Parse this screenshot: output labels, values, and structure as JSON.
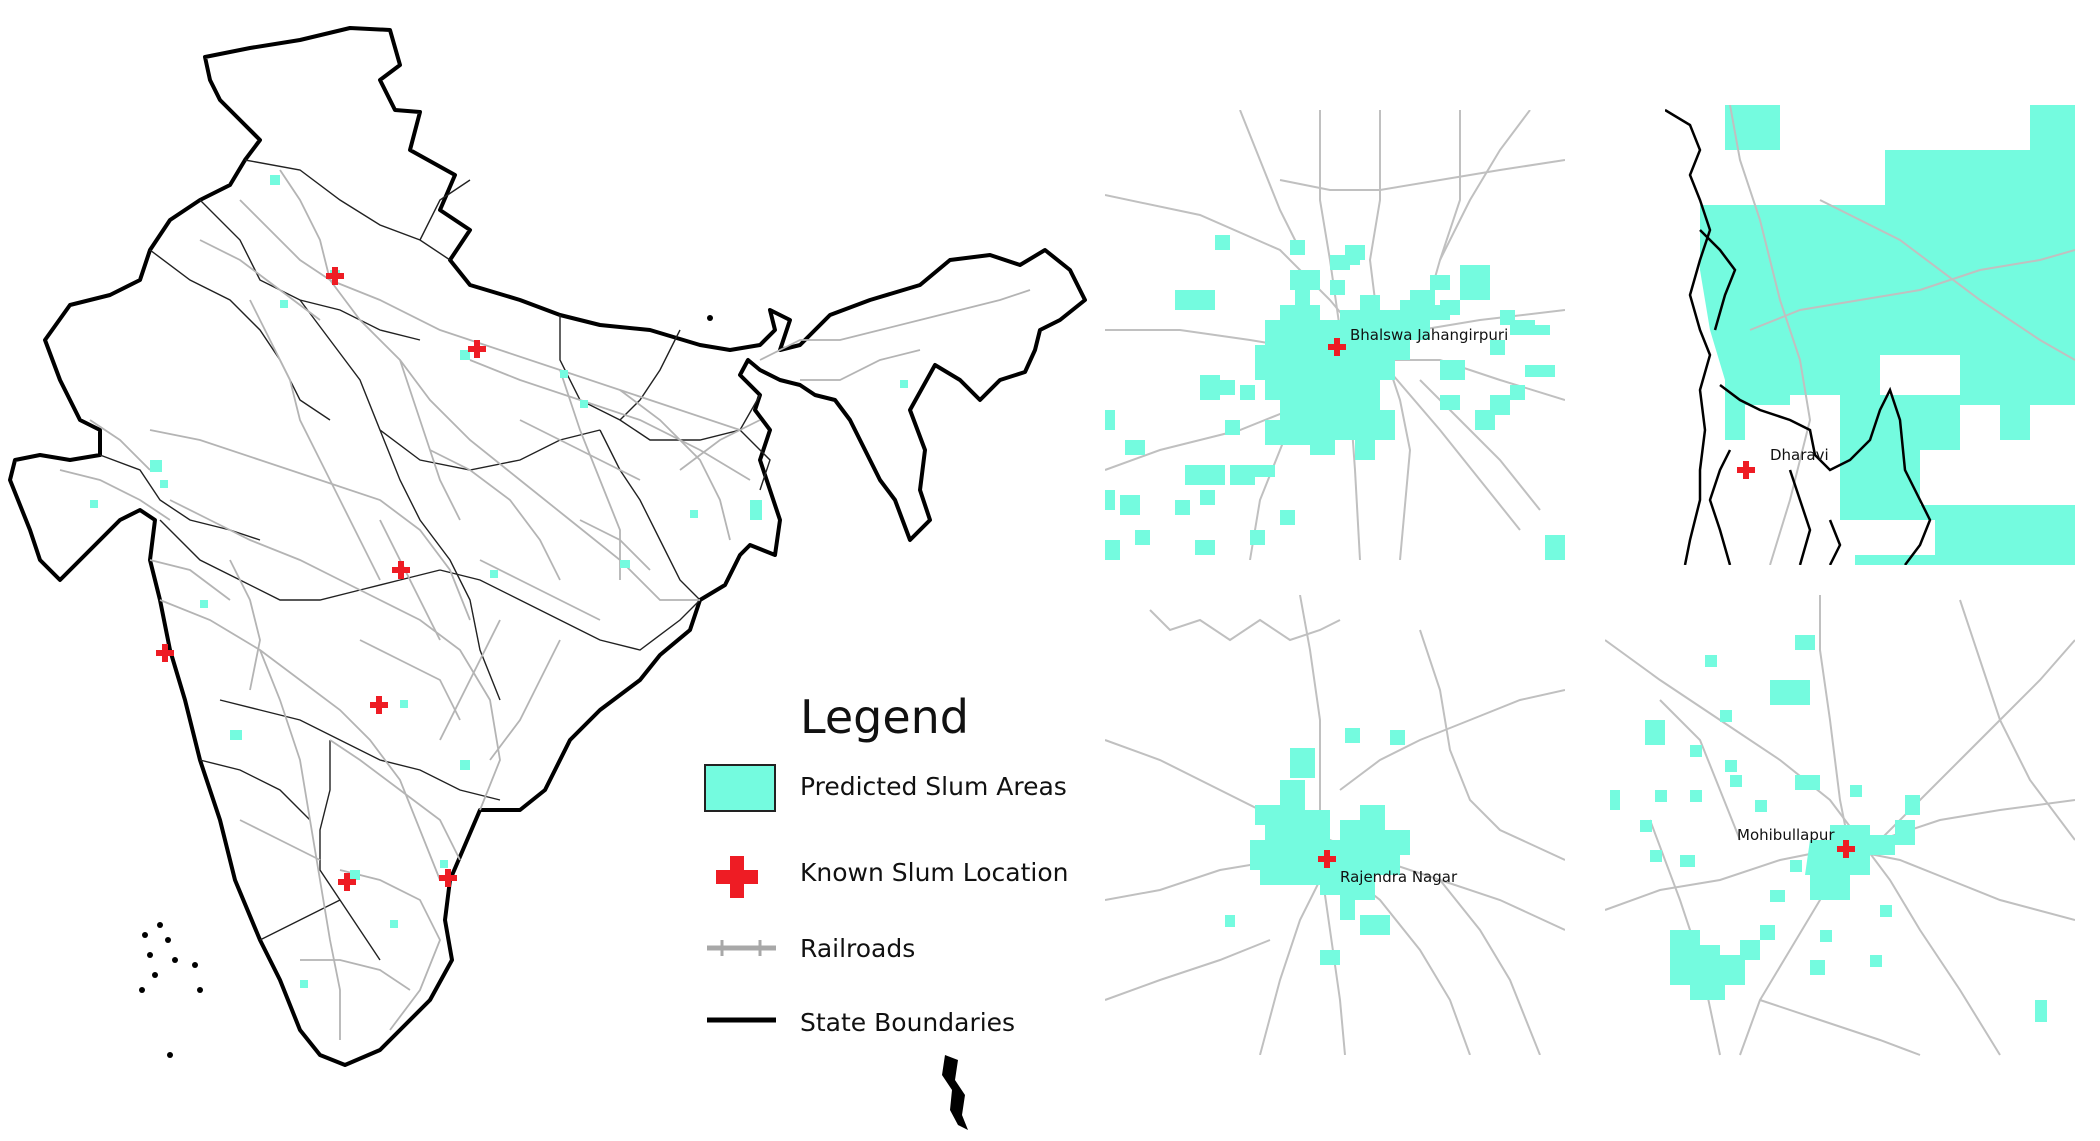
{
  "legend": {
    "title": "Legend",
    "items": [
      {
        "label": "Predicted Slum Areas",
        "symbol": "slum-swatch"
      },
      {
        "label": "Known Slum Location",
        "symbol": "red-cross"
      },
      {
        "label": "Railroads",
        "symbol": "railroad-line"
      },
      {
        "label": "State Boundaries",
        "symbol": "boundary-line"
      }
    ]
  },
  "insets": [
    {
      "label": "Bhalswa Jahangirpuri"
    },
    {
      "label": "Dharavi"
    },
    {
      "label": "Rajendra Nagar"
    },
    {
      "label": "Mohibullapur"
    }
  ],
  "colors": {
    "slum": "#74fbdf",
    "marker": "#ee1c24",
    "railroad": "#b4b4b4",
    "boundary": "#000000"
  }
}
